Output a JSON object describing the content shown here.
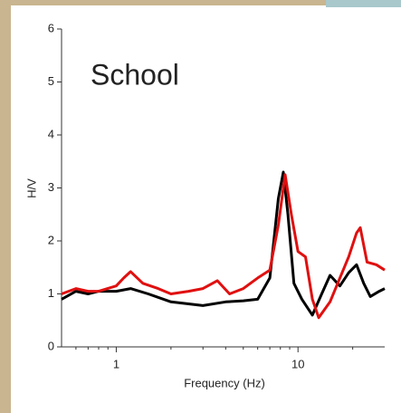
{
  "chart_data": {
    "type": "line",
    "annotation": "School",
    "xlabel": "Frequency (Hz)",
    "ylabel": "H/V",
    "xscale": "log",
    "xlim": [
      0.5,
      30
    ],
    "xticks": [
      1,
      10
    ],
    "xminorticks": [
      0.6,
      0.7,
      0.8,
      0.9,
      2,
      3,
      4,
      5,
      6,
      7,
      8,
      9,
      20
    ],
    "ylim": [
      0,
      6
    ],
    "yticks": [
      0,
      1,
      2,
      3,
      4,
      5,
      6
    ],
    "series": [
      {
        "color": "#000000",
        "x": [
          0.5,
          0.6,
          0.7,
          0.8,
          1.0,
          1.2,
          1.5,
          2,
          3,
          4,
          5,
          6,
          7,
          7.8,
          8.3,
          8.8,
          9.5,
          10.5,
          12,
          13.5,
          15,
          17,
          19,
          21,
          23,
          25,
          28,
          30
        ],
        "values": [
          0.9,
          1.05,
          1.0,
          1.05,
          1.05,
          1.1,
          1.0,
          0.85,
          0.78,
          0.85,
          0.87,
          0.9,
          1.3,
          2.8,
          3.3,
          2.5,
          1.2,
          0.9,
          0.6,
          1.0,
          1.35,
          1.15,
          1.4,
          1.55,
          1.2,
          0.95,
          1.05,
          1.1
        ]
      },
      {
        "color": "#e01010",
        "x": [
          0.5,
          0.6,
          0.7,
          0.8,
          1.0,
          1.1,
          1.2,
          1.4,
          1.7,
          2,
          2.5,
          3,
          3.6,
          4.2,
          5,
          6,
          7,
          7.8,
          8.5,
          9.2,
          10,
          11,
          12,
          13,
          15,
          17,
          19,
          21,
          22,
          24,
          27,
          30
        ],
        "values": [
          1.0,
          1.1,
          1.05,
          1.05,
          1.15,
          1.3,
          1.42,
          1.2,
          1.1,
          1.0,
          1.05,
          1.1,
          1.25,
          1.0,
          1.1,
          1.3,
          1.45,
          2.3,
          3.25,
          2.5,
          1.8,
          1.7,
          0.9,
          0.55,
          0.85,
          1.3,
          1.7,
          2.15,
          2.25,
          1.6,
          1.55,
          1.45
        ]
      }
    ]
  }
}
